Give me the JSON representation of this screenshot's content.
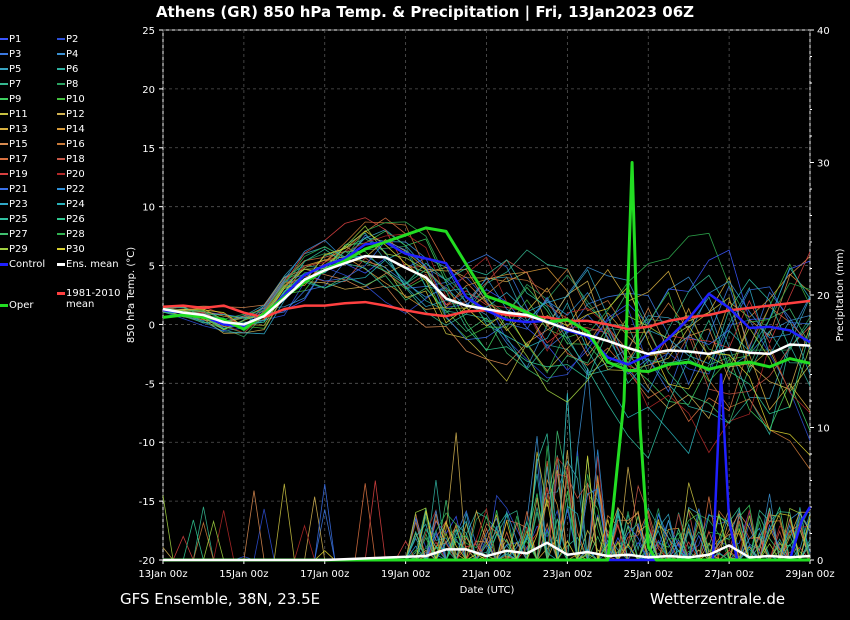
{
  "title": "Athens  (GR)  850 hPa Temp. & Precipitation | Fri, 13Jan2023 06Z",
  "footer": {
    "left": "GFS Ensemble, 38N, 23.5E",
    "right": "Wetterzentrale.de"
  },
  "legend": [
    {
      "label": "P1",
      "color": "#3a55ff"
    },
    {
      "label": "P2",
      "color": "#2d4fd6"
    },
    {
      "label": "P3",
      "color": "#3b78e0"
    },
    {
      "label": "P4",
      "color": "#3a8fd0"
    },
    {
      "label": "P5",
      "color": "#38a3c0"
    },
    {
      "label": "P6",
      "color": "#2fb0a0"
    },
    {
      "label": "P7",
      "color": "#35b890"
    },
    {
      "label": "P8",
      "color": "#2aa060"
    },
    {
      "label": "P9",
      "color": "#3ed060"
    },
    {
      "label": "P10",
      "color": "#44c040"
    },
    {
      "label": "P11",
      "color": "#c8c040"
    },
    {
      "label": "P12",
      "color": "#d0b050"
    },
    {
      "label": "P13",
      "color": "#d8b040"
    },
    {
      "label": "P14",
      "color": "#d89a38"
    },
    {
      "label": "P15",
      "color": "#d88a50"
    },
    {
      "label": "P16",
      "color": "#c87838"
    },
    {
      "label": "P17",
      "color": "#d87040"
    },
    {
      "label": "P18",
      "color": "#c85848"
    },
    {
      "label": "P19",
      "color": "#d84040"
    },
    {
      "label": "P20",
      "color": "#b02828"
    },
    {
      "label": "P21",
      "color": "#3a70e8"
    },
    {
      "label": "P22",
      "color": "#3090d8"
    },
    {
      "label": "P23",
      "color": "#30a8c8"
    },
    {
      "label": "P24",
      "color": "#28b0b8"
    },
    {
      "label": "P25",
      "color": "#30c0a0"
    },
    {
      "label": "P26",
      "color": "#30c890"
    },
    {
      "label": "P27",
      "color": "#40c070"
    },
    {
      "label": "P28",
      "color": "#30b050"
    },
    {
      "label": "P29",
      "color": "#a0d040"
    },
    {
      "label": "P30",
      "color": "#d8d030"
    },
    {
      "label": "Control",
      "color": "#2020ff"
    },
    {
      "label": "Ens. mean",
      "color": "#ffffff"
    },
    {
      "label": "Oper",
      "color": "#22dd22"
    },
    {
      "label": "1981-2010",
      "color": "#ff4040"
    },
    {
      "label": "mean",
      "color": ""
    }
  ],
  "chart_data": {
    "type": "line",
    "title": "Athens  (GR)  850 hPa Temp. & Precipitation | Fri, 13Jan2023 06Z",
    "xlabel": "Date (UTC)",
    "ylabel": "850 hPa Temp. (°C)",
    "y2label": "Precipitation (mm)",
    "ylim": [
      -20,
      25
    ],
    "y2lim": [
      0,
      40
    ],
    "yticks": [
      "-20",
      "-15",
      "-10",
      "-5",
      "0",
      "5",
      "10",
      "15",
      "20",
      "25"
    ],
    "y2ticks": [
      "0",
      "10",
      "20",
      "30",
      "40"
    ],
    "xlim": [
      0,
      16
    ],
    "xticks": [
      "13Jan 00z",
      "15Jan 00z",
      "17Jan 00z",
      "19Jan 00z",
      "21Jan 00z",
      "23Jan 00z",
      "25Jan 00z",
      "27Jan 00z",
      "29Jan 00z"
    ],
    "x_unit": "days since 13Jan 00z",
    "grid": true,
    "temp_series": {
      "Ens. mean": {
        "color": "#ffffff",
        "x": [
          0,
          0.5,
          1,
          1.5,
          2,
          2.5,
          3,
          3.5,
          4,
          4.5,
          5,
          5.5,
          6,
          6.5,
          7,
          7.5,
          8,
          8.5,
          9,
          9.5,
          10,
          10.5,
          11,
          11.5,
          12,
          12.5,
          13,
          13.5,
          14,
          14.5,
          15,
          15.5,
          16
        ],
        "y": [
          1.3,
          1.0,
          0.8,
          0.2,
          0.0,
          0.7,
          2.2,
          3.8,
          4.6,
          5.2,
          5.8,
          5.7,
          4.8,
          4.0,
          2.2,
          1.6,
          1.3,
          1.0,
          0.8,
          0.2,
          -0.4,
          -0.9,
          -1.4,
          -2.0,
          -2.5,
          -2.2,
          -2.3,
          -2.5,
          -2.1,
          -2.4,
          -2.5,
          -1.7,
          -1.8
        ]
      },
      "Control": {
        "color": "#2020ff",
        "x": [
          0,
          0.5,
          1,
          1.5,
          2,
          2.5,
          3,
          3.5,
          4,
          4.5,
          5,
          5.5,
          6,
          6.5,
          7,
          7.5,
          8,
          8.5,
          9,
          9.5,
          10,
          10.5,
          11,
          11.5,
          12,
          12.5,
          13,
          13.5,
          14,
          14.5,
          15,
          15.5,
          16
        ],
        "y": [
          1.2,
          1.0,
          0.7,
          0.0,
          -0.2,
          0.8,
          2.5,
          4.2,
          5.0,
          5.6,
          6.8,
          7.0,
          6.0,
          5.6,
          5.2,
          2.3,
          1.2,
          0.4,
          0.2,
          0.3,
          -0.5,
          -1.0,
          -2.8,
          -3.4,
          -2.6,
          -1.2,
          0.5,
          2.6,
          1.4,
          -0.3,
          -0.2,
          -0.5,
          -1.5
        ]
      },
      "Oper": {
        "color": "#22dd22",
        "x": [
          0,
          0.5,
          1,
          1.5,
          2,
          2.5,
          3,
          3.5,
          4,
          4.5,
          5,
          5.5,
          6,
          6.5,
          7,
          7.5,
          8,
          8.5,
          9,
          9.5,
          10,
          10.5,
          11,
          11.5,
          12,
          12.5,
          13,
          13.5,
          14,
          14.5,
          15,
          15.5,
          16
        ],
        "y": [
          0.6,
          0.8,
          0.6,
          0.4,
          -0.4,
          0.9,
          2.3,
          3.6,
          4.6,
          5.4,
          6.4,
          7.0,
          7.6,
          8.2,
          7.9,
          5.1,
          2.4,
          1.8,
          1.0,
          0.2,
          0.4,
          -0.6,
          -3.2,
          -3.9,
          -4.0,
          -3.4,
          -3.2,
          -3.8,
          -3.4,
          -3.2,
          -3.6,
          -2.9,
          -3.3
        ]
      },
      "1981-2010 mean": {
        "color": "#ff4040",
        "x": [
          0,
          0.5,
          1,
          1.5,
          2,
          2.5,
          3,
          3.5,
          4,
          4.5,
          5,
          5.5,
          6,
          6.5,
          7,
          7.5,
          8,
          8.5,
          9,
          9.5,
          10,
          10.5,
          11,
          11.5,
          12,
          12.5,
          13,
          13.5,
          14,
          14.5,
          15,
          15.5,
          16
        ],
        "y": [
          1.5,
          1.6,
          1.4,
          1.6,
          1.0,
          0.6,
          1.3,
          1.6,
          1.6,
          1.8,
          1.9,
          1.6,
          1.2,
          0.9,
          0.7,
          1.1,
          1.2,
          0.8,
          0.7,
          0.6,
          0.3,
          0.3,
          0.0,
          -0.4,
          -0.2,
          0.3,
          0.6,
          0.8,
          1.2,
          1.4,
          1.6,
          1.8,
          2.0
        ]
      }
    },
    "precip_series": {
      "Oper": {
        "color": "#22dd22",
        "x": [
          0,
          4,
          8,
          9,
          10.5,
          11,
          11.4,
          11.6,
          11.8,
          12,
          12.2,
          12.6,
          13,
          14,
          15,
          16
        ],
        "y": [
          0,
          0,
          0,
          0,
          0,
          0,
          12,
          30,
          10,
          1,
          0,
          0,
          0,
          0,
          0,
          0
        ]
      },
      "Control": {
        "color": "#2020ff",
        "x": [
          0,
          4,
          8,
          10,
          12,
          13.6,
          13.8,
          14,
          14.2,
          15.5,
          15.8,
          16
        ],
        "y": [
          0,
          0,
          0,
          0,
          0,
          0,
          14,
          3,
          0,
          0,
          3,
          4
        ]
      },
      "Ens. mean": {
        "color": "#ffffff",
        "x": [
          0,
          4,
          6.5,
          7,
          7.5,
          8,
          8.5,
          9,
          9.5,
          10,
          10.5,
          11,
          11.5,
          12,
          12.5,
          13,
          13.5,
          14,
          14.5,
          15,
          15.5,
          16
        ],
        "y": [
          0,
          0,
          0.3,
          0.8,
          0.8,
          0.3,
          0.7,
          0.5,
          1.3,
          0.4,
          0.6,
          0.3,
          0.4,
          0.2,
          0.3,
          0.2,
          0.4,
          1.1,
          0.2,
          0.3,
          0.2,
          0.3
        ]
      }
    }
  }
}
